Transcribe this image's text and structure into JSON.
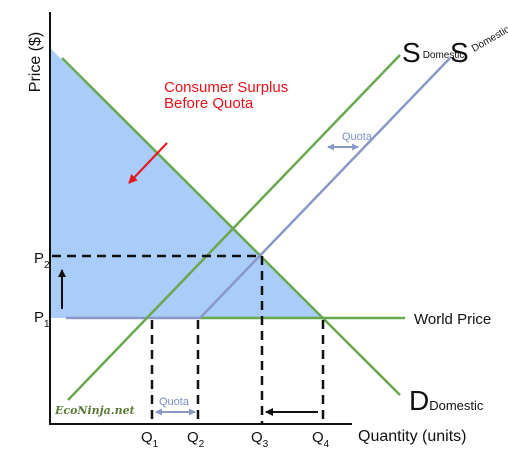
{
  "axes": {
    "y_label": "Price ($)",
    "x_label": "Quantity (units)"
  },
  "price_ticks": [
    {
      "main": "P",
      "sub": "2"
    },
    {
      "main": "P",
      "sub": "1"
    }
  ],
  "quantity_ticks": [
    {
      "main": "Q",
      "sub": "1"
    },
    {
      "main": "Q",
      "sub": "2"
    },
    {
      "main": "Q",
      "sub": "3"
    },
    {
      "main": "Q",
      "sub": "4"
    }
  ],
  "curves": {
    "supply_domestic": {
      "main": "S",
      "sub": "Domestic"
    },
    "supply_quota": {
      "main": "S",
      "sub": "Domestic+Quota"
    },
    "demand_domestic": {
      "main": "D",
      "sub": "Domestic"
    },
    "world_price": "World Price"
  },
  "annotation": {
    "line1": "Consumer Surplus",
    "line2": "Before Quota"
  },
  "quota_labels": [
    "Quota",
    "Quota"
  ],
  "watermark": "EcoNinja.net",
  "colors": {
    "surplus_fill": "#a9ccf8",
    "green": "#6aa84f",
    "blue_gray": "#8a98c8",
    "red": "#e8121a",
    "black": "#111111"
  }
}
